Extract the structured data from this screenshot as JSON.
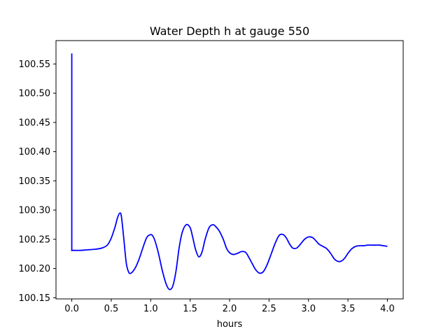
{
  "chart_data": {
    "type": "line",
    "title": "Water Depth h at gauge 550",
    "xlabel": "hours",
    "ylabel": "",
    "xlim": [
      -0.2,
      4.2
    ],
    "ylim": [
      100.148,
      100.59
    ],
    "grid": false,
    "legend": "none",
    "xticks": [
      0.0,
      0.5,
      1.0,
      1.5,
      2.0,
      2.5,
      3.0,
      3.5,
      4.0
    ],
    "xtick_labels": [
      "0.0",
      "0.5",
      "1.0",
      "1.5",
      "2.0",
      "2.5",
      "3.0",
      "3.5",
      "4.0"
    ],
    "yticks": [
      100.15,
      100.2,
      100.25,
      100.3,
      100.35,
      100.4,
      100.45,
      100.5,
      100.55
    ],
    "ytick_labels": [
      "100.15",
      "100.20",
      "100.25",
      "100.30",
      "100.35",
      "100.40",
      "100.45",
      "100.50",
      "100.55"
    ],
    "series": [
      {
        "color": "#0000ff",
        "x": [
          0.0,
          0.0,
          0.001,
          0.05,
          0.1,
          0.2,
          0.3,
          0.38,
          0.45,
          0.5,
          0.55,
          0.58,
          0.61,
          0.63,
          0.66,
          0.69,
          0.72,
          0.75,
          0.8,
          0.85,
          0.9,
          0.95,
          1.0,
          1.03,
          1.06,
          1.1,
          1.15,
          1.2,
          1.24,
          1.28,
          1.32,
          1.36,
          1.4,
          1.45,
          1.5,
          1.53,
          1.57,
          1.61,
          1.65,
          1.69,
          1.74,
          1.79,
          1.83,
          1.87,
          1.92,
          1.96,
          2.0,
          2.05,
          2.1,
          2.15,
          2.2,
          2.24,
          2.28,
          2.33,
          2.38,
          2.43,
          2.48,
          2.53,
          2.58,
          2.63,
          2.68,
          2.72,
          2.76,
          2.8,
          2.85,
          2.9,
          2.95,
          3.0,
          3.05,
          3.09,
          3.13,
          3.18,
          3.23,
          3.28,
          3.33,
          3.38,
          3.42,
          3.46,
          3.5,
          3.55,
          3.6,
          3.65,
          3.7,
          3.75,
          3.8,
          3.85,
          3.9,
          3.95,
          4.0
        ],
        "y": [
          100.568,
          100.231,
          100.231,
          100.231,
          100.231,
          100.232,
          100.233,
          100.235,
          100.24,
          100.252,
          100.272,
          100.287,
          100.295,
          100.288,
          100.25,
          100.21,
          100.194,
          100.192,
          100.2,
          100.215,
          100.235,
          100.253,
          100.258,
          100.255,
          100.245,
          100.225,
          100.195,
          100.172,
          100.164,
          100.17,
          100.195,
          100.235,
          100.262,
          100.275,
          100.27,
          100.255,
          100.232,
          100.22,
          100.228,
          100.25,
          100.27,
          100.275,
          100.271,
          100.264,
          100.25,
          100.235,
          100.227,
          100.224,
          100.226,
          100.229,
          100.228,
          100.22,
          100.21,
          100.198,
          100.192,
          100.195,
          100.208,
          100.226,
          100.244,
          100.257,
          100.258,
          100.252,
          100.242,
          100.235,
          100.235,
          100.242,
          100.25,
          100.254,
          100.253,
          100.248,
          100.242,
          100.238,
          100.234,
          100.226,
          100.216,
          100.212,
          100.213,
          100.218,
          100.226,
          100.234,
          100.238,
          100.239,
          100.239,
          100.24,
          100.24,
          100.24,
          100.24,
          100.239,
          100.238
        ]
      }
    ]
  }
}
